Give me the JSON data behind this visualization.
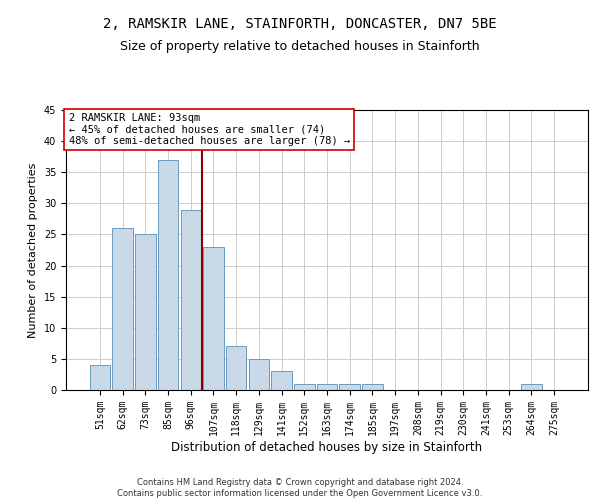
{
  "title": "2, RAMSKIR LANE, STAINFORTH, DONCASTER, DN7 5BE",
  "subtitle": "Size of property relative to detached houses in Stainforth",
  "xlabel": "Distribution of detached houses by size in Stainforth",
  "ylabel": "Number of detached properties",
  "categories": [
    "51sqm",
    "62sqm",
    "73sqm",
    "85sqm",
    "96sqm",
    "107sqm",
    "118sqm",
    "129sqm",
    "141sqm",
    "152sqm",
    "163sqm",
    "174sqm",
    "185sqm",
    "197sqm",
    "208sqm",
    "219sqm",
    "230sqm",
    "241sqm",
    "253sqm",
    "264sqm",
    "275sqm"
  ],
  "values": [
    4,
    26,
    25,
    37,
    29,
    23,
    7,
    5,
    3,
    1,
    1,
    1,
    1,
    0,
    0,
    0,
    0,
    0,
    0,
    1,
    0
  ],
  "bar_color": "#c9d9e8",
  "bar_edge_color": "#6a9bbf",
  "vline_x": 4.5,
  "vline_color": "#8b0000",
  "ylim": [
    0,
    45
  ],
  "yticks": [
    0,
    5,
    10,
    15,
    20,
    25,
    30,
    35,
    40,
    45
  ],
  "annotation_text": "2 RAMSKIR LANE: 93sqm\n← 45% of detached houses are smaller (74)\n48% of semi-detached houses are larger (78) →",
  "annotation_box_color": "#ffffff",
  "annotation_box_edge": "#cc0000",
  "footer_line1": "Contains HM Land Registry data © Crown copyright and database right 2024.",
  "footer_line2": "Contains public sector information licensed under the Open Government Licence v3.0.",
  "background_color": "#ffffff",
  "grid_color": "#cccccc",
  "title_fontsize": 10,
  "subtitle_fontsize": 9,
  "tick_fontsize": 7,
  "ylabel_fontsize": 8,
  "xlabel_fontsize": 8.5,
  "annotation_fontsize": 7.5,
  "footer_fontsize": 6
}
